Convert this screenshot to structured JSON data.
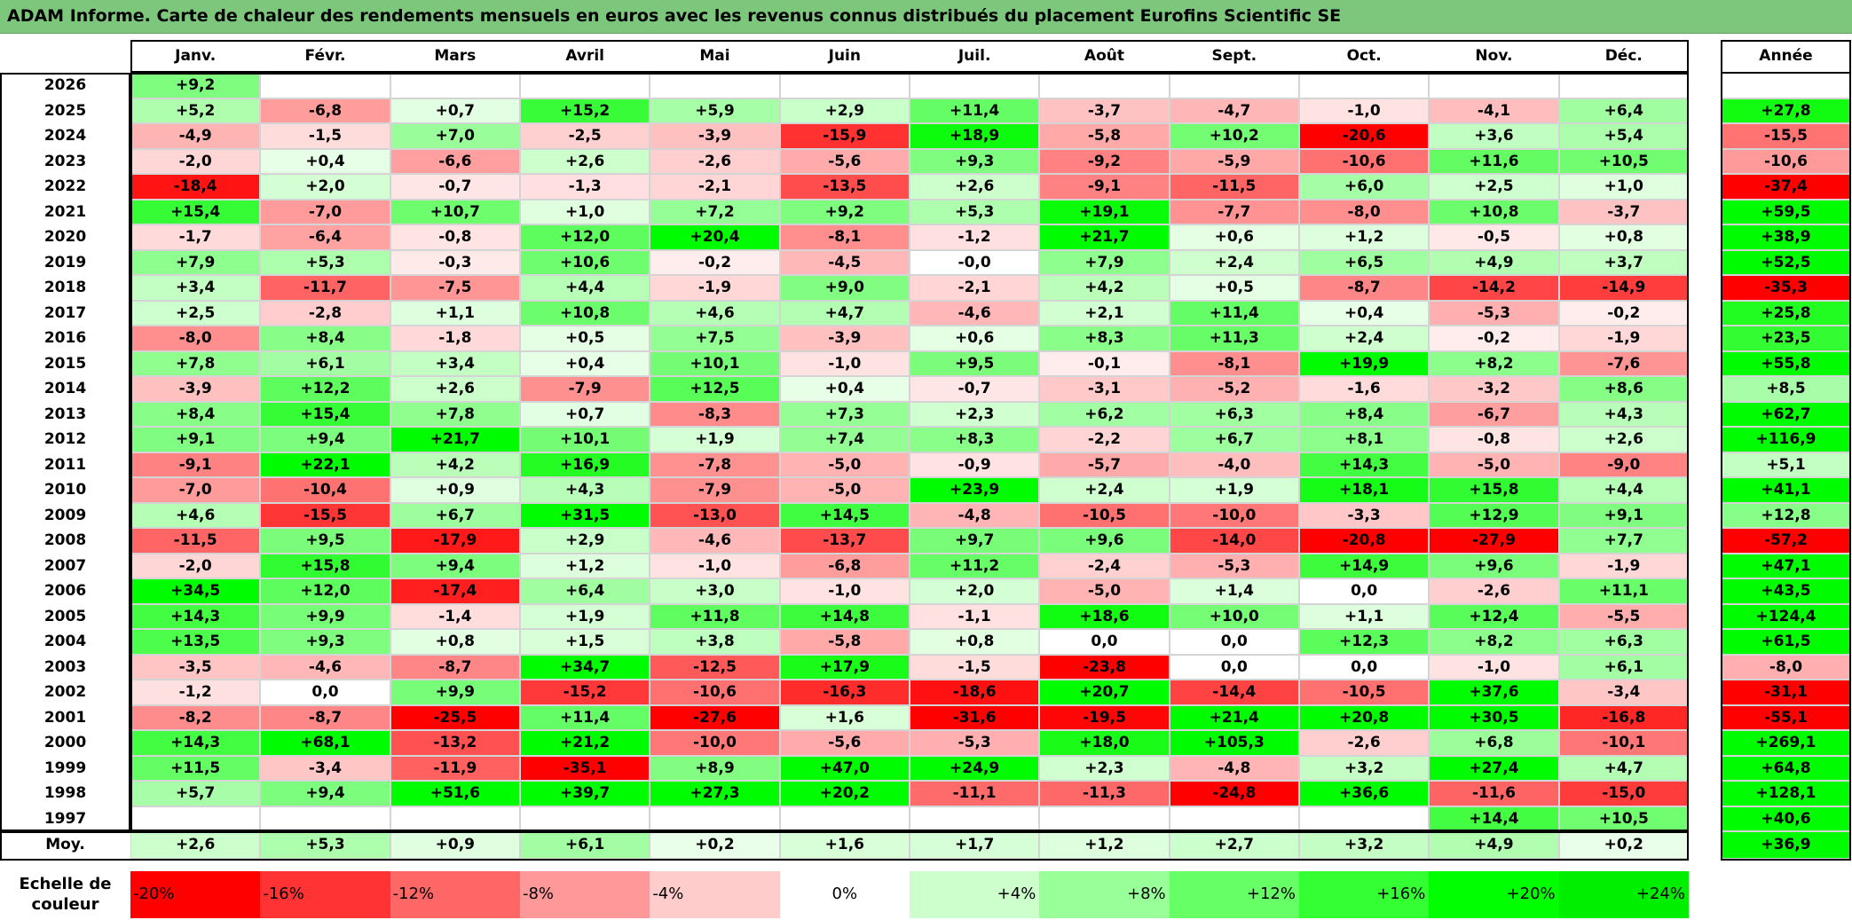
{
  "title": "ADAM Informe. Carte de chaleur des rendements mensuels en euros avec les revenus connus distribués du placement Eurofins Scientific SE",
  "year_header": "Année",
  "avg_label": "Moy.",
  "scale_label_line1": "Echelle de",
  "scale_label_line2": "couleur",
  "color_scale": [
    {
      "label": "-20%",
      "value": -20,
      "color": "#ff0000"
    },
    {
      "label": "-16%",
      "value": -16,
      "color": "#ff3333"
    },
    {
      "label": "-12%",
      "value": -12,
      "color": "#ff6666"
    },
    {
      "label": "-8%",
      "value": -8,
      "color": "#ff9999"
    },
    {
      "label": "-4%",
      "value": -4,
      "color": "#ffcccc"
    },
    {
      "label": "0%",
      "value": 0,
      "color": "#ffffff"
    },
    {
      "label": "+4%",
      "value": 4,
      "color": "#ccffcc"
    },
    {
      "label": "+8%",
      "value": 8,
      "color": "#99ff99"
    },
    {
      "label": "+12%",
      "value": 12,
      "color": "#66ff66"
    },
    {
      "label": "+16%",
      "value": 16,
      "color": "#33ff33"
    },
    {
      "label": "+20%",
      "value": 20,
      "color": "#00ff00"
    },
    {
      "label": "+24%",
      "value": 24,
      "color": "#00ee00"
    }
  ],
  "chart_data": {
    "type": "heatmap",
    "title": "ADAM Informe. Carte de chaleur des rendements mensuels en euros avec les revenus connus distribués du placement Eurofins Scientific SE",
    "columns": [
      "Janv.",
      "Févr.",
      "Mars",
      "Avril",
      "Mai",
      "Juin",
      "Juil.",
      "Août",
      "Sept.",
      "Oct.",
      "Nov.",
      "Déc."
    ],
    "rows": [
      {
        "year": "2026",
        "values": [
          "+9,2",
          "",
          "",
          "",
          "",
          "",
          "",
          "",
          "",
          "",
          "",
          ""
        ],
        "annual": ""
      },
      {
        "year": "2025",
        "values": [
          "+5,2",
          "-6,8",
          "+0,7",
          "+15,2",
          "+5,9",
          "+2,9",
          "+11,4",
          "-3,7",
          "-4,7",
          "-1,0",
          "-4,1",
          "+6,4"
        ],
        "annual": "+27,8"
      },
      {
        "year": "2024",
        "values": [
          "-4,9",
          "-1,5",
          "+7,0",
          "-2,5",
          "-3,9",
          "-15,9",
          "+18,9",
          "-5,8",
          "+10,2",
          "-20,6",
          "+3,6",
          "+5,4"
        ],
        "annual": "-15,5"
      },
      {
        "year": "2023",
        "values": [
          "-2,0",
          "+0,4",
          "-6,6",
          "+2,6",
          "-2,6",
          "-5,6",
          "+9,3",
          "-9,2",
          "-5,9",
          "-10,6",
          "+11,6",
          "+10,5"
        ],
        "annual": "-10,6"
      },
      {
        "year": "2022",
        "values": [
          "-18,4",
          "+2,0",
          "-0,7",
          "-1,3",
          "-2,1",
          "-13,5",
          "+2,6",
          "-9,1",
          "-11,5",
          "+6,0",
          "+2,5",
          "+1,0"
        ],
        "annual": "-37,4"
      },
      {
        "year": "2021",
        "values": [
          "+15,4",
          "-7,0",
          "+10,7",
          "+1,0",
          "+7,2",
          "+9,2",
          "+5,3",
          "+19,1",
          "-7,7",
          "-8,0",
          "+10,8",
          "-3,7"
        ],
        "annual": "+59,5"
      },
      {
        "year": "2020",
        "values": [
          "-1,7",
          "-6,4",
          "-0,8",
          "+12,0",
          "+20,4",
          "-8,1",
          "-1,2",
          "+21,7",
          "+0,6",
          "+1,2",
          "-0,5",
          "+0,8"
        ],
        "annual": "+38,9"
      },
      {
        "year": "2019",
        "values": [
          "+7,9",
          "+5,3",
          "-0,3",
          "+10,6",
          "-0,2",
          "-4,5",
          "-0,0",
          "+7,9",
          "+2,4",
          "+6,5",
          "+4,9",
          "+3,7"
        ],
        "annual": "+52,5"
      },
      {
        "year": "2018",
        "values": [
          "+3,4",
          "-11,7",
          "-7,5",
          "+4,4",
          "-1,9",
          "+9,0",
          "-2,1",
          "+4,2",
          "+0,5",
          "-8,7",
          "-14,2",
          "-14,9"
        ],
        "annual": "-35,3"
      },
      {
        "year": "2017",
        "values": [
          "+2,5",
          "-2,8",
          "+1,1",
          "+10,8",
          "+4,6",
          "+4,7",
          "-4,6",
          "+2,1",
          "+11,4",
          "+0,4",
          "-5,3",
          "-0,2"
        ],
        "annual": "+25,8"
      },
      {
        "year": "2016",
        "values": [
          "-8,0",
          "+8,4",
          "-1,8",
          "+0,5",
          "+7,5",
          "-3,9",
          "+0,6",
          "+8,3",
          "+11,3",
          "+2,4",
          "-0,2",
          "-1,9"
        ],
        "annual": "+23,5"
      },
      {
        "year": "2015",
        "values": [
          "+7,8",
          "+6,1",
          "+3,4",
          "+0,4",
          "+10,1",
          "-1,0",
          "+9,5",
          "-0,1",
          "-8,1",
          "+19,9",
          "+8,2",
          "-7,6"
        ],
        "annual": "+55,8"
      },
      {
        "year": "2014",
        "values": [
          "-3,9",
          "+12,2",
          "+2,6",
          "-7,9",
          "+12,5",
          "+0,4",
          "-0,7",
          "-3,1",
          "-5,2",
          "-1,6",
          "-3,2",
          "+8,6"
        ],
        "annual": "+8,5"
      },
      {
        "year": "2013",
        "values": [
          "+8,4",
          "+15,4",
          "+7,8",
          "+0,7",
          "-8,3",
          "+7,3",
          "+2,3",
          "+6,2",
          "+6,3",
          "+8,4",
          "-6,7",
          "+4,3"
        ],
        "annual": "+62,7"
      },
      {
        "year": "2012",
        "values": [
          "+9,1",
          "+9,4",
          "+21,7",
          "+10,1",
          "+1,9",
          "+7,4",
          "+8,3",
          "-2,2",
          "+6,7",
          "+8,1",
          "-0,8",
          "+2,6"
        ],
        "annual": "+116,9"
      },
      {
        "year": "2011",
        "values": [
          "-9,1",
          "+22,1",
          "+4,2",
          "+16,9",
          "-7,8",
          "-5,0",
          "-0,9",
          "-5,7",
          "-4,0",
          "+14,3",
          "-5,0",
          "-9,0"
        ],
        "annual": "+5,1"
      },
      {
        "year": "2010",
        "values": [
          "-7,0",
          "-10,4",
          "+0,9",
          "+4,3",
          "-7,9",
          "-5,0",
          "+23,9",
          "+2,4",
          "+1,9",
          "+18,1",
          "+15,8",
          "+4,4"
        ],
        "annual": "+41,1"
      },
      {
        "year": "2009",
        "values": [
          "+4,6",
          "-15,5",
          "+6,7",
          "+31,5",
          "-13,0",
          "+14,5",
          "-4,8",
          "-10,5",
          "-10,0",
          "-3,3",
          "+12,9",
          "+9,1"
        ],
        "annual": "+12,8"
      },
      {
        "year": "2008",
        "values": [
          "-11,5",
          "+9,5",
          "-17,9",
          "+2,9",
          "-4,6",
          "-13,7",
          "+9,7",
          "+9,6",
          "-14,0",
          "-20,8",
          "-27,9",
          "+7,7"
        ],
        "annual": "-57,2"
      },
      {
        "year": "2007",
        "values": [
          "-2,0",
          "+15,8",
          "+9,4",
          "+1,2",
          "-1,0",
          "-6,8",
          "+11,2",
          "-2,4",
          "-5,3",
          "+14,9",
          "+9,6",
          "-1,9"
        ],
        "annual": "+47,1"
      },
      {
        "year": "2006",
        "values": [
          "+34,5",
          "+12,0",
          "-17,4",
          "+6,4",
          "+3,0",
          "-1,0",
          "+2,0",
          "-5,0",
          "+1,4",
          "0,0",
          "-2,6",
          "+11,1"
        ],
        "annual": "+43,5"
      },
      {
        "year": "2005",
        "values": [
          "+14,3",
          "+9,9",
          "-1,4",
          "+1,9",
          "+11,8",
          "+14,8",
          "-1,1",
          "+18,6",
          "+10,0",
          "+1,1",
          "+12,4",
          "-5,5"
        ],
        "annual": "+124,4"
      },
      {
        "year": "2004",
        "values": [
          "+13,5",
          "+9,3",
          "+0,8",
          "+1,5",
          "+3,8",
          "-5,8",
          "+0,8",
          "0,0",
          "0,0",
          "+12,3",
          "+8,2",
          "+6,3"
        ],
        "annual": "+61,5"
      },
      {
        "year": "2003",
        "values": [
          "-3,5",
          "-4,6",
          "-8,7",
          "+34,7",
          "-12,5",
          "+17,9",
          "-1,5",
          "-23,8",
          "0,0",
          "0,0",
          "-1,0",
          "+6,1"
        ],
        "annual": "-8,0"
      },
      {
        "year": "2002",
        "values": [
          "-1,2",
          "0,0",
          "+9,9",
          "-15,2",
          "-10,6",
          "-16,3",
          "-18,6",
          "+20,7",
          "-14,4",
          "-10,5",
          "+37,6",
          "-3,4"
        ],
        "annual": "-31,1"
      },
      {
        "year": "2001",
        "values": [
          "-8,2",
          "-8,7",
          "-25,5",
          "+11,4",
          "-27,6",
          "+1,6",
          "-31,6",
          "-19,5",
          "+21,4",
          "+20,8",
          "+30,5",
          "-16,8"
        ],
        "annual": "-55,1"
      },
      {
        "year": "2000",
        "values": [
          "+14,3",
          "+68,1",
          "-13,2",
          "+21,2",
          "-10,0",
          "-5,6",
          "-5,3",
          "+18,0",
          "+105,3",
          "-2,6",
          "+6,8",
          "-10,1"
        ],
        "annual": "+269,1"
      },
      {
        "year": "1999",
        "values": [
          "+11,5",
          "-3,4",
          "-11,9",
          "-35,1",
          "+8,9",
          "+47,0",
          "+24,9",
          "+2,3",
          "-4,8",
          "+3,2",
          "+27,4",
          "+4,7"
        ],
        "annual": "+64,8"
      },
      {
        "year": "1998",
        "values": [
          "+5,7",
          "+9,4",
          "+51,6",
          "+39,7",
          "+27,3",
          "+20,2",
          "-11,1",
          "-11,3",
          "-24,8",
          "+36,6",
          "-11,6",
          "-15,0"
        ],
        "annual": "+128,1"
      },
      {
        "year": "1997",
        "values": [
          "",
          "",
          "",
          "",
          "",
          "",
          "",
          "",
          "",
          "",
          "+14,4",
          "+10,5"
        ],
        "annual": "+40,6"
      }
    ],
    "averages": [
      "+2,6",
      "+5,3",
      "+0,9",
      "+6,1",
      "+0,2",
      "+1,6",
      "+1,7",
      "+1,2",
      "+2,7",
      "+3,2",
      "+4,9",
      "+0,2"
    ],
    "average_annual": "+36,9"
  }
}
